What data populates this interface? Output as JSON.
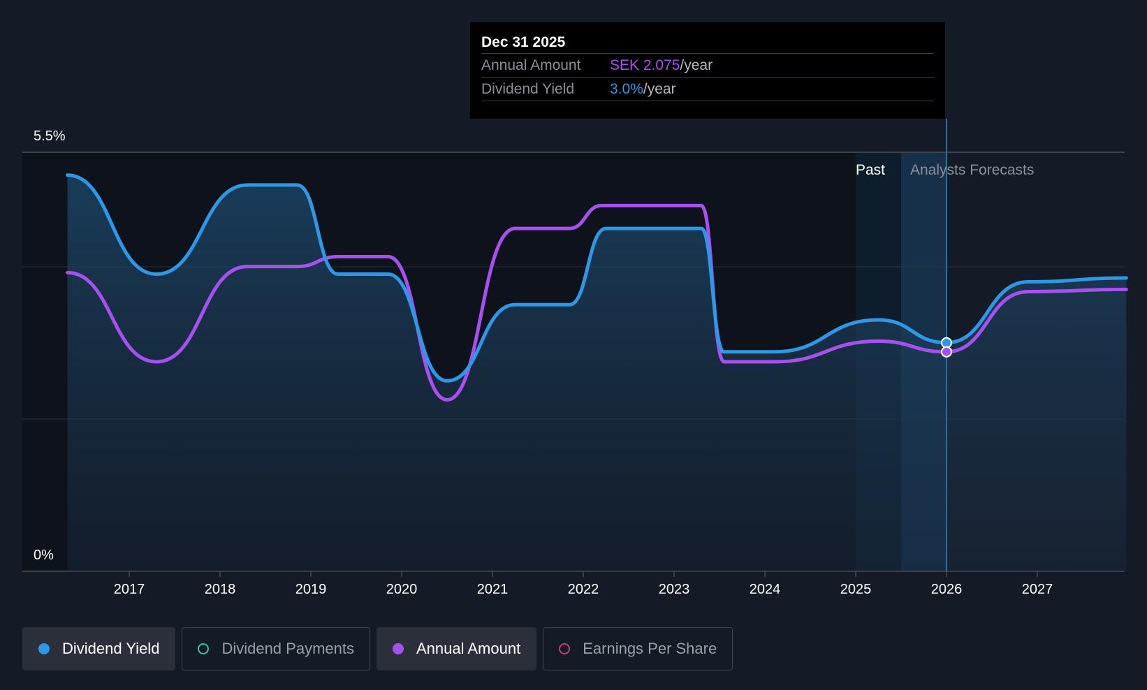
{
  "chart_data": {
    "type": "line",
    "y_axis": {
      "top_label": "5.5%",
      "bottom_label": "0%",
      "ylim": [
        0,
        5.5
      ]
    },
    "x_ticks": [
      "2017",
      "2018",
      "2019",
      "2020",
      "2021",
      "2022",
      "2023",
      "2024",
      "2025",
      "2026",
      "2027"
    ],
    "xlim": [
      2016.32,
      2027.98
    ],
    "region_labels": {
      "past": "Past",
      "forecast": "Analysts Forecasts"
    },
    "series": [
      {
        "name": "Dividend Yield",
        "color": "#2d97e8",
        "filled": true,
        "points": [
          [
            2016.32,
            5.2
          ],
          [
            2017.3,
            3.9
          ],
          [
            2018.3,
            5.07
          ],
          [
            2018.85,
            5.07
          ],
          [
            2019.3,
            3.9
          ],
          [
            2019.85,
            3.9
          ],
          [
            2020.5,
            2.5
          ],
          [
            2021.25,
            3.5
          ],
          [
            2021.85,
            3.5
          ],
          [
            2022.25,
            4.5
          ],
          [
            2023.3,
            4.5
          ],
          [
            2023.55,
            2.88
          ],
          [
            2024.1,
            2.88
          ],
          [
            2025.25,
            3.3
          ],
          [
            2026.0,
            3.0
          ],
          [
            2026.9,
            3.8
          ],
          [
            2027.98,
            3.85
          ]
        ]
      },
      {
        "name": "Annual Amount",
        "color": "#a650f0",
        "filled": false,
        "points": [
          [
            2016.32,
            3.92
          ],
          [
            2017.3,
            2.75
          ],
          [
            2018.3,
            4.0
          ],
          [
            2018.85,
            4.0
          ],
          [
            2019.3,
            4.13
          ],
          [
            2019.85,
            4.13
          ],
          [
            2020.5,
            2.25
          ],
          [
            2021.25,
            4.5
          ],
          [
            2021.85,
            4.5
          ],
          [
            2022.2,
            4.8
          ],
          [
            2023.3,
            4.8
          ],
          [
            2023.55,
            2.75
          ],
          [
            2024.1,
            2.75
          ],
          [
            2025.25,
            3.02
          ],
          [
            2026.0,
            2.88
          ],
          [
            2026.9,
            3.67
          ],
          [
            2027.98,
            3.7
          ]
        ]
      }
    ],
    "tooltip": {
      "date": "Dec 31 2025",
      "rows": [
        {
          "label": "Annual Amount",
          "value": "SEK 2.075",
          "unit": "/year",
          "color": "#a650f0"
        },
        {
          "label": "Dividend Yield",
          "value": "3.0%",
          "unit": "/year",
          "color": "#2d97e8"
        }
      ]
    },
    "legend": [
      {
        "label": "Dividend Yield",
        "color": "#2d97e8",
        "active": true
      },
      {
        "label": "Dividend Payments",
        "color": "#3fc1a5",
        "active": false
      },
      {
        "label": "Annual Amount",
        "color": "#a650f0",
        "active": true
      },
      {
        "label": "Earnings Per Share",
        "color": "#c2407a",
        "active": false
      }
    ]
  }
}
